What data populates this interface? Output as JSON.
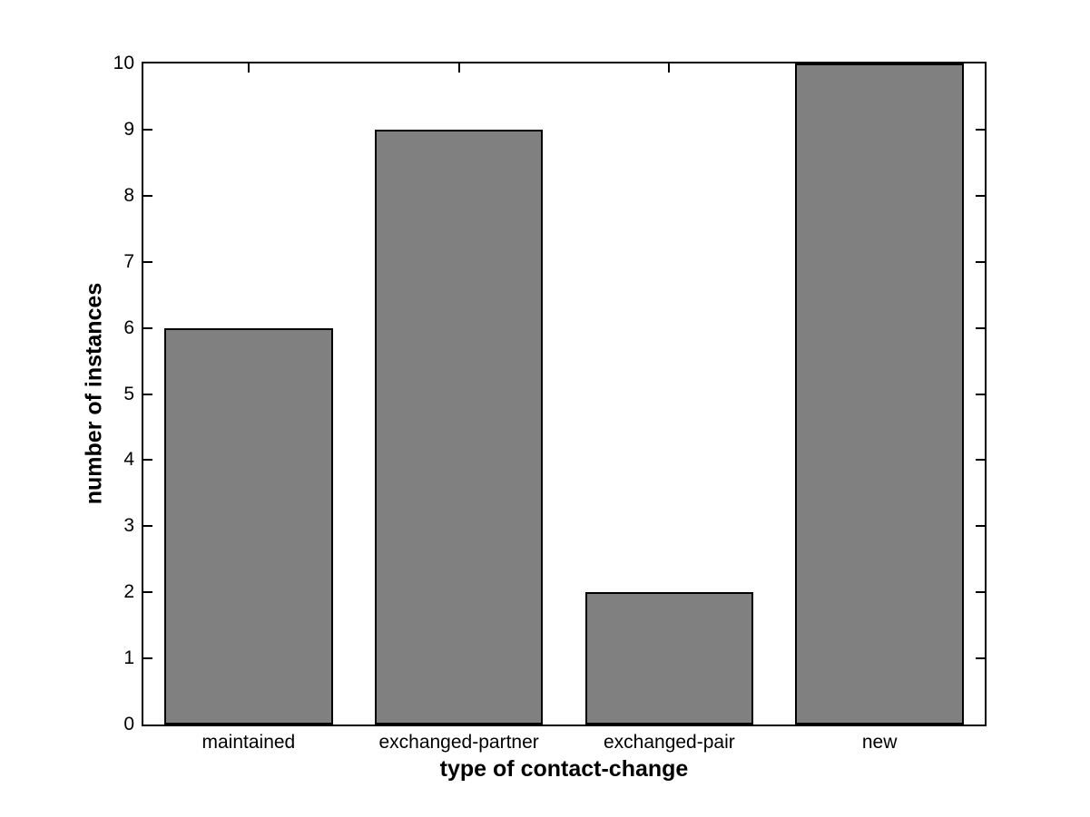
{
  "figure": {
    "background_color": "#ffffff",
    "axis_color": "#000000",
    "bar_fill_color": "#808080",
    "bar_edge_color": "#000000"
  },
  "chart_data": {
    "type": "bar",
    "title": "",
    "xlabel": "type of contact-change",
    "ylabel": "number of instances",
    "categories": [
      "maintained",
      "exchanged-partner",
      "exchanged-pair",
      "new"
    ],
    "values": [
      6,
      9,
      2,
      10
    ],
    "ylim": [
      0,
      10
    ],
    "ytick_interval": 1,
    "ytick_labels": [
      "0",
      "1",
      "2",
      "3",
      "4",
      "5",
      "6",
      "7",
      "8",
      "9",
      "10"
    ],
    "bar_width_fraction": 0.8,
    "grid": false,
    "legend": "none",
    "tick_direction": "in",
    "box": true
  }
}
